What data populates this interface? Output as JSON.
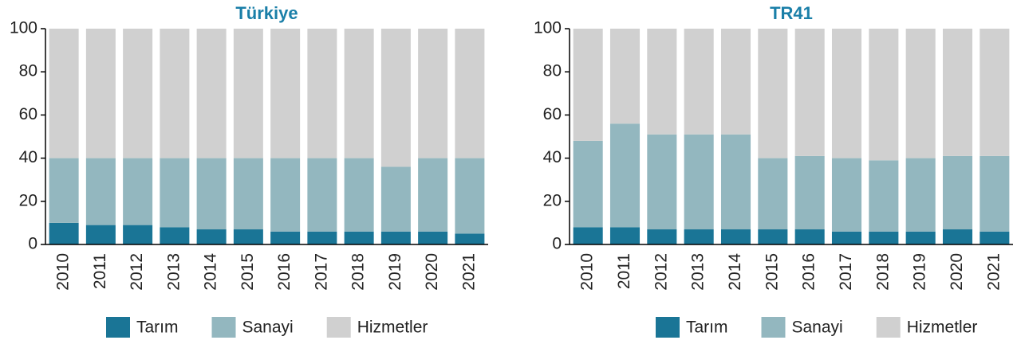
{
  "chart_data": [
    {
      "type": "stacked_bar",
      "title": "Türkiye",
      "categories": [
        "2010",
        "2011",
        "2012",
        "2013",
        "2014",
        "2015",
        "2016",
        "2017",
        "2018",
        "2019",
        "2020",
        "2021"
      ],
      "series": [
        {
          "name": "Tarım",
          "color": "#1a7596",
          "values": [
            10,
            9,
            9,
            8,
            7,
            7,
            6,
            6,
            6,
            6,
            6,
            5
          ]
        },
        {
          "name": "Sanayi",
          "color": "#93b7bf",
          "values": [
            30,
            31,
            31,
            32,
            33,
            33,
            34,
            34,
            34,
            30,
            34,
            35
          ]
        },
        {
          "name": "Hizmetler",
          "color": "#d0d0d0",
          "values": [
            60,
            60,
            60,
            60,
            60,
            60,
            60,
            60,
            60,
            64,
            60,
            60
          ]
        }
      ],
      "ylim": [
        0,
        100
      ],
      "yticks": [
        0,
        20,
        40,
        60,
        80,
        100
      ],
      "legend": "bottom"
    },
    {
      "type": "stacked_bar",
      "title": "TR41",
      "categories": [
        "2010",
        "2011",
        "2012",
        "2013",
        "2014",
        "2015",
        "2016",
        "2017",
        "2018",
        "2019",
        "2020",
        "2021"
      ],
      "series": [
        {
          "name": "Tarım",
          "color": "#1a7596",
          "values": [
            8,
            8,
            7,
            7,
            7,
            7,
            7,
            6,
            6,
            6,
            7,
            6
          ]
        },
        {
          "name": "Sanayi",
          "color": "#93b7bf",
          "values": [
            40,
            48,
            44,
            44,
            44,
            33,
            34,
            34,
            33,
            34,
            34,
            35
          ]
        },
        {
          "name": "Hizmetler",
          "color": "#d0d0d0",
          "values": [
            52,
            44,
            49,
            49,
            49,
            60,
            59,
            60,
            61,
            60,
            59,
            59
          ]
        }
      ],
      "ylim": [
        0,
        100
      ],
      "yticks": [
        0,
        20,
        40,
        60,
        80,
        100
      ],
      "legend": "bottom"
    }
  ]
}
